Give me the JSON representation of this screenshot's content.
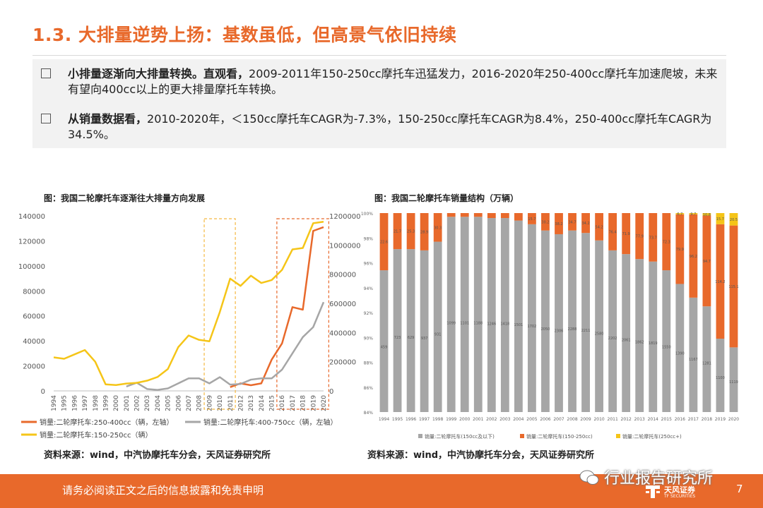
{
  "header": {
    "title": "1.3. 大排量逆势上扬：基数虽低，但高景气依旧持续"
  },
  "bullets": [
    {
      "bold": "小排量逐渐向大排量转换。直观看，",
      "text": "2009-2011年150-250cc摩托车迅猛发力，2016-2020年250-400cc摩托车加速爬坡，未来有望向400cc以上的更大排量摩托车转换。"
    },
    {
      "bold": "从销量数据看，",
      "text": "2010-2020年，＜150cc摩托车CAGR为-7.3%，150-250cc摩托车CAGR为8.4%，250-400cc摩托车CAGR为34.5%。"
    }
  ],
  "chart1_title": "图：我国二轮摩托车逐渐往大排量方向发展",
  "chart2_title": "图：我国二轮摩托车销量结构（万辆）",
  "source1": "资料来源：wind，中汽协摩托车分会，天风证券研究所",
  "source2": "资料来源：wind，中汽协摩托车分会，天风证券研究所",
  "footer": {
    "disclaimer": "请务必阅读正文之后的信息披露和免责申明",
    "brand": "天风证券",
    "brand_en": "TF SECURITIES",
    "page": "7"
  },
  "watermark": "行业报告研究所",
  "colors": {
    "accent": "#e8692b",
    "gray": "#a6a6a6",
    "yellow": "#f5c518",
    "frame": "#f5b840"
  },
  "chart_data": [
    {
      "type": "line",
      "x": [
        "1994",
        "1995",
        "1996",
        "1997",
        "1998",
        "1999",
        "2000",
        "2001",
        "2002",
        "2003",
        "2004",
        "2005",
        "2006",
        "2007",
        "2008",
        "2009",
        "2010",
        "2011",
        "2012",
        "2013",
        "2014",
        "2015",
        "2016",
        "2017",
        "2018",
        "2019",
        "2020"
      ],
      "ylim": [
        0,
        140000
      ],
      "y_ticks": [
        "0",
        "20000",
        "40000",
        "60000",
        "80000",
        "100000",
        "120000",
        "140000"
      ],
      "y2lim": [
        0,
        1200000
      ],
      "y2_ticks": [
        "0",
        "200000",
        "400000",
        "600000",
        "800000",
        "1000000",
        "1200000"
      ],
      "series": [
        {
          "name": "销量:二轮摩托车:250-400cc（辆，左轴）",
          "axis": "left",
          "color": "#e8692b",
          "values": [
            null,
            null,
            null,
            null,
            null,
            null,
            null,
            null,
            null,
            null,
            null,
            null,
            null,
            null,
            null,
            null,
            null,
            3000,
            6000,
            4500,
            6000,
            25000,
            38000,
            67000,
            65000,
            128000,
            131000
          ]
        },
        {
          "name": "销量:二轮摩托车:400-750cc（辆，左轴）",
          "axis": "left",
          "color": "#a6a6a6",
          "values": [
            null,
            null,
            null,
            null,
            null,
            null,
            null,
            3500,
            6500,
            1500,
            800,
            2000,
            6000,
            10000,
            10000,
            6000,
            11000,
            5000,
            5500,
            9000,
            10000,
            10000,
            17000,
            30000,
            43000,
            51000,
            71000
          ]
        },
        {
          "name": "销量:二轮摩托车:150-250cc（辆）",
          "axis": "right",
          "color": "#f5c518",
          "values": [
            230000,
            220000,
            250000,
            280000,
            200000,
            45000,
            40000,
            50000,
            55000,
            70000,
            95000,
            150000,
            300000,
            380000,
            350000,
            340000,
            540000,
            770000,
            720000,
            790000,
            740000,
            760000,
            830000,
            970000,
            980000,
            1150000,
            1160000
          ]
        }
      ],
      "highlights": [
        [
          "2009",
          "2011"
        ],
        [
          "2016",
          "2020"
        ]
      ]
    },
    {
      "type": "bar",
      "stacked": "percent",
      "categories": [
        "1994",
        "1995",
        "1996",
        "1997",
        "1998",
        "1999",
        "2000",
        "2001",
        "2002",
        "2003",
        "2004",
        "2005",
        "2006",
        "2007",
        "2008",
        "2009",
        "2010",
        "2011",
        "2012",
        "2013",
        "2014",
        "2015",
        "2016",
        "2017",
        "2018",
        "2019",
        "2020"
      ],
      "y_ticks": [
        "84%",
        "86%",
        "88%",
        "90%",
        "92%",
        "94%",
        "96%",
        "98%",
        "100%"
      ],
      "ylim": [
        84,
        100
      ],
      "series": [
        {
          "name": "销量:二轮摩托车(150cc及以下)",
          "color": "#a6a6a6",
          "values": [
            95.4,
            97.1,
            97.1,
            97.0,
            97.7,
            99.7,
            99.7,
            99.7,
            99.6,
            99.6,
            99.4,
            99.1,
            98.6,
            98.3,
            98.6,
            98.4,
            97.8,
            97.0,
            96.7,
            96.3,
            96.1,
            95.4,
            94.3,
            93.2,
            92.5,
            89.9,
            89.2
          ],
          "labels": [
            "459",
            "723",
            "629",
            "937",
            "931",
            "1099",
            "1101",
            "1188",
            "1246",
            "1418",
            "1501",
            "1702",
            "2050",
            "2306",
            "2288",
            "2211",
            "2580",
            "2202",
            "2061",
            "1862",
            "1819",
            "1550",
            "1390",
            "1167",
            "1281",
            "1100",
            "1119"
          ]
        },
        {
          "name": "销量:二轮摩托车(150-250cc)",
          "color": "#e8692b",
          "values": [
            4.6,
            2.9,
            2.9,
            3.0,
            2.3,
            0.3,
            0.3,
            0.3,
            0.4,
            0.4,
            0.6,
            0.9,
            1.4,
            1.7,
            1.4,
            1.6,
            2.2,
            3.0,
            3.3,
            3.7,
            3.9,
            4.6,
            5.6,
            6.7,
            7.3,
            9.2,
            9.8
          ],
          "labels": [
            "22.6",
            "21.7",
            "25.3",
            "28.9",
            "30.3",
            "",
            "",
            "",
            "",
            "",
            "",
            "15.7",
            "30.2",
            "38.2",
            "34.7",
            "34.2",
            "54.2",
            "76.4",
            "71.9",
            "77.9",
            "73.7",
            "72.3",
            "79.9",
            "96.2",
            "94.7",
            "114.2",
            "115.1"
          ]
        },
        {
          "name": "销量:二轮摩托车(250cc+)",
          "color": "#f5c518",
          "values": [
            0,
            0,
            0,
            0,
            0,
            0,
            0,
            0,
            0,
            0,
            0,
            0,
            0,
            0,
            0,
            0,
            0,
            0,
            0,
            0,
            0,
            0,
            0.1,
            0.1,
            0.2,
            0.9,
            1.0
          ],
          "labels": [
            "",
            "",
            "",
            "",
            "",
            "",
            "",
            "",
            "",
            "",
            "",
            "",
            "",
            "",
            "",
            "",
            "",
            "",
            "",
            "",
            "",
            "",
            "6.7",
            "9.7",
            "10.8",
            "15.7",
            "20.5"
          ]
        }
      ]
    }
  ]
}
